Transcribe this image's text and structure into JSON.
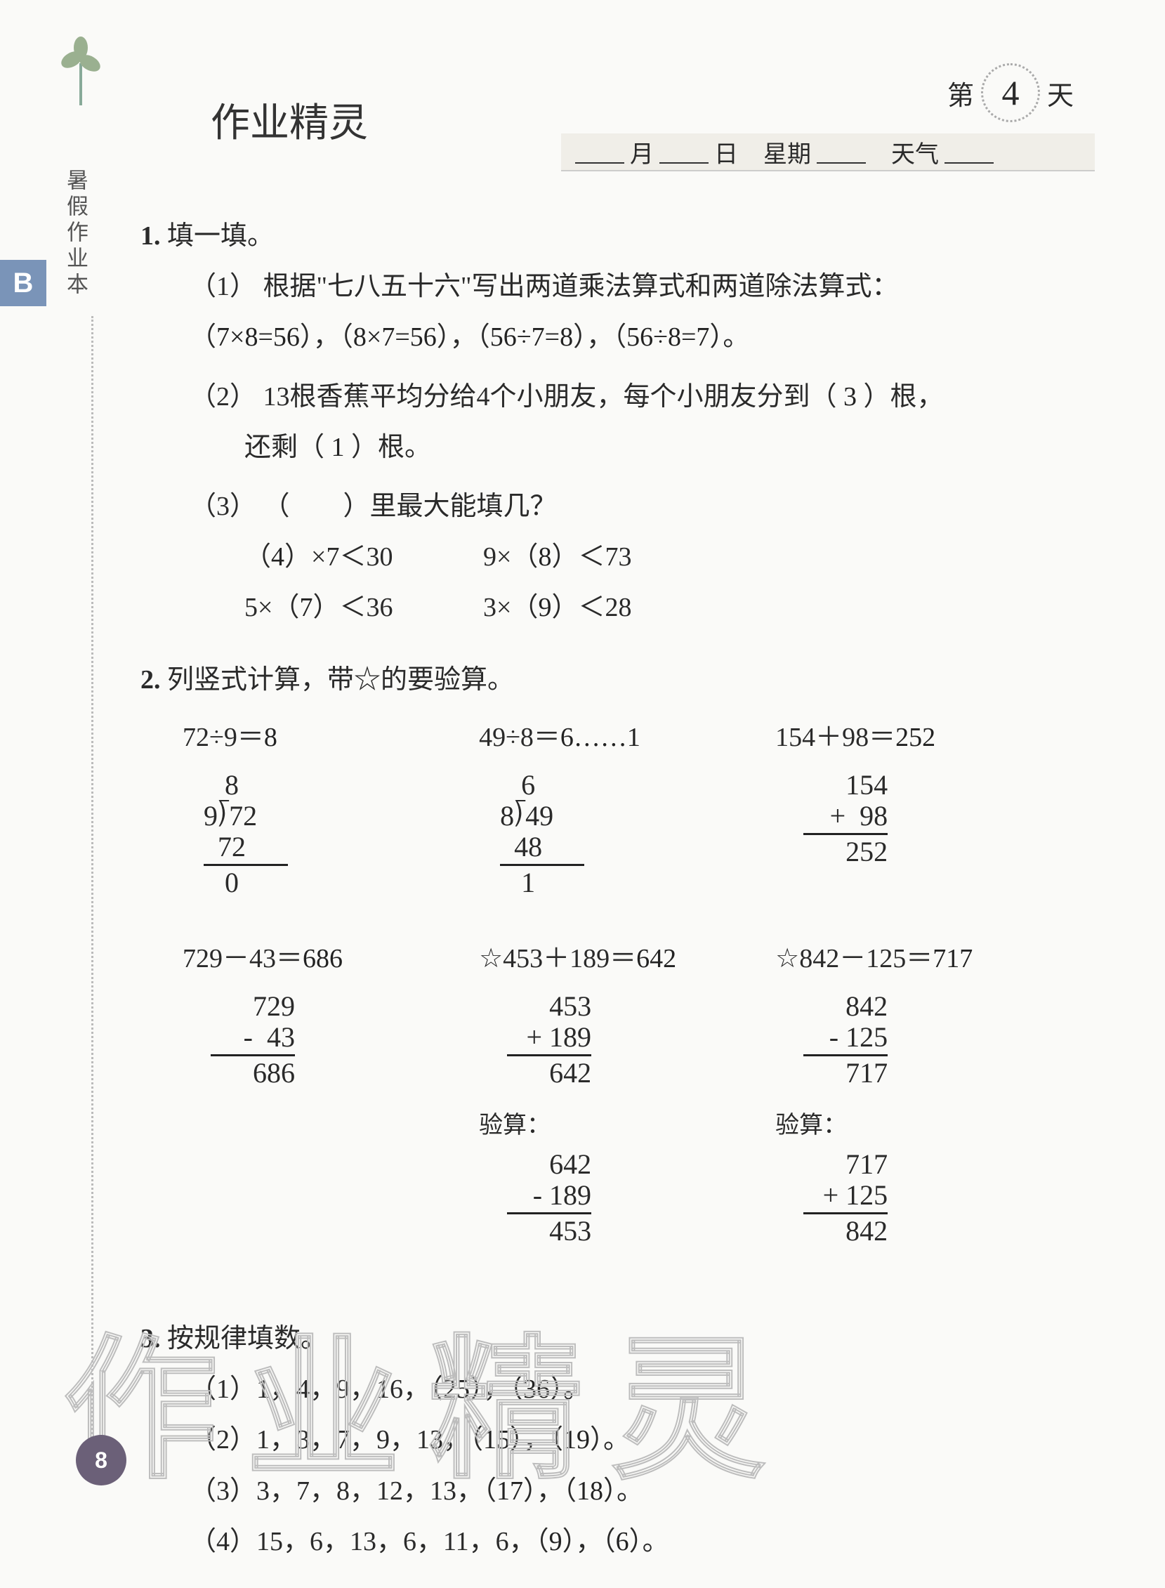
{
  "side_label": "暑假作业本",
  "tab_letter": "B",
  "day": {
    "prefix": "第",
    "number": "4",
    "suffix": "天"
  },
  "date_bar": {
    "month": "月",
    "day": "日",
    "weekday": "星期",
    "weather": "天气"
  },
  "handwriting_title": "作业精灵",
  "q1": {
    "num": "1.",
    "title": "填一填。",
    "sub1_label": "（1）",
    "sub1_text_a": "根据\"七八五十六\"写出两道乘法算式和两道除法算式：",
    "sub1_ans": [
      "7×8=56",
      "8×7=56",
      "56÷7=8",
      "56÷8=7"
    ],
    "sub2_label": "（2）",
    "sub2_text_a": "13根香蕉平均分给4个小朋友，每个小朋友分到（",
    "sub2_ans1": "3",
    "sub2_text_b": "）根，",
    "sub2_text_c": "还剩（",
    "sub2_ans2": "1",
    "sub2_text_d": "）根。",
    "sub3_label": "（3）",
    "sub3_text": "（　　）里最大能填几？",
    "sub3_rows": [
      {
        "left_pre": "（",
        "left_ans": "4",
        "left_post": "）×7＜30",
        "right_pre": "9×（",
        "right_ans": "8",
        "right_post": "）＜73"
      },
      {
        "left_pre": "5×（",
        "left_ans": "7",
        "left_post": "）＜36",
        "right_pre": "3×（",
        "right_ans": "9",
        "right_post": "）＜28"
      }
    ]
  },
  "q2": {
    "num": "2.",
    "title": "列竖式计算，带☆的要验算。",
    "items": [
      {
        "expr": "72÷9＝",
        "ans": "8",
        "type": "longdiv",
        "work": "   8\n9⟌72\n  72\n ———\n   0"
      },
      {
        "expr": "49÷8＝",
        "ans": "6……1",
        "type": "longdiv",
        "work": "   6\n8⟌49\n  48\n ———\n   1"
      },
      {
        "expr": "154＋98＝",
        "ans": "252",
        "type": "vert",
        "work": "  154\n+  98\n————\n  252"
      },
      {
        "expr": "729－43＝",
        "ans": "686",
        "type": "vert",
        "work": "  729\n-  43\n————\n  686"
      },
      {
        "expr": "☆453＋189＝",
        "ans": "642",
        "type": "vert",
        "work": "  453\n+ 189\n————\n  642",
        "check_label": "验算：",
        "check": "  642\n- 189\n————\n  453"
      },
      {
        "expr": "☆842－125＝",
        "ans": "717",
        "type": "vert",
        "work": "  842\n- 125\n————\n  717",
        "check_label": "验算：",
        "check": "  717\n+ 125\n————\n  842"
      }
    ]
  },
  "q3": {
    "num": "3.",
    "title": "按规律填数。",
    "items": [
      {
        "label": "（1）",
        "seq": "1，4，9，16，（",
        "a1": "25",
        "mid": "），（",
        "a2": "36",
        "end": "）。"
      },
      {
        "label": "（2）",
        "seq": "1，3，7，9，13，（",
        "a1": "15",
        "mid": "），（",
        "a2": "19",
        "end": "）。"
      },
      {
        "label": "（3）",
        "seq": "3，7，8，12，13，（",
        "a1": "17",
        "mid": "），（",
        "a2": "18",
        "end": "）。"
      },
      {
        "label": "（4）",
        "seq": "15，6，13，6，11，6，（",
        "a1": "9",
        "mid": "），（",
        "a2": "6",
        "end": "）。"
      }
    ]
  },
  "page_number": "8",
  "watermark": "作业精灵",
  "colors": {
    "background": "#fafaf8",
    "text": "#2a2a2a",
    "tab_bg": "#7a94b8",
    "pagenum_bg": "#6b6078",
    "watermark_stroke": "#bdbdbd",
    "date_bar_bg": "#f0eee8"
  }
}
